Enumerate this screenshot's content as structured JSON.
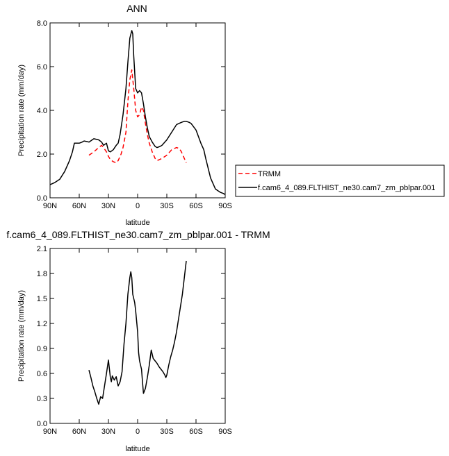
{
  "chart_data": [
    {
      "type": "line",
      "title": "ANN",
      "xlabel": "latitude",
      "ylabel": "Precipitation rate (mm/day)",
      "xlim": [
        90,
        -90
      ],
      "ylim": [
        0,
        8
      ],
      "xticks": [
        90,
        60,
        30,
        0,
        -30,
        -60,
        -90
      ],
      "xtick_labels": [
        "90N",
        "60N",
        "30N",
        "0",
        "30S",
        "60S",
        "90S"
      ],
      "yticks": [
        0,
        2,
        4,
        6,
        8
      ],
      "ytick_labels": [
        "0.0",
        "2.0",
        "4.0",
        "6.0",
        "8.0"
      ],
      "grid": false,
      "legend": "right",
      "series": [
        {
          "name": "TRMM",
          "color": "#ff0000",
          "dash": "dashed",
          "x": [
            50,
            45,
            40,
            37,
            35,
            32,
            30,
            28,
            25,
            22,
            20,
            17,
            15,
            12,
            10,
            8,
            6,
            4,
            2,
            0,
            -2,
            -4,
            -6,
            -8,
            -10,
            -12,
            -15,
            -18,
            -20,
            -25,
            -30,
            -35,
            -40,
            -43,
            -45,
            -48,
            -50
          ],
          "y": [
            1.95,
            2.1,
            2.3,
            2.4,
            2.3,
            2.1,
            1.9,
            1.75,
            1.65,
            1.6,
            1.7,
            2.0,
            2.3,
            3.0,
            4.4,
            5.4,
            5.85,
            5.0,
            4.0,
            3.7,
            3.8,
            4.15,
            4.0,
            3.4,
            2.9,
            2.5,
            2.1,
            1.8,
            1.7,
            1.8,
            1.95,
            2.2,
            2.3,
            2.25,
            2.1,
            1.8,
            1.6
          ]
        },
        {
          "name": "f.cam6_4_089.FLTHIST_ne30.cam7_zm_pblpar.001",
          "color": "#000000",
          "dash": "solid",
          "x": [
            90,
            85,
            80,
            75,
            70,
            67,
            65,
            62,
            60,
            57,
            55,
            50,
            45,
            40,
            37,
            35,
            32,
            30,
            28,
            25,
            22,
            20,
            18,
            15,
            12,
            10,
            8,
            6,
            5,
            4,
            2,
            0,
            -2,
            -4,
            -6,
            -8,
            -10,
            -12,
            -15,
            -18,
            -20,
            -23,
            -25,
            -30,
            -35,
            -40,
            -45,
            -48,
            -50,
            -53,
            -55,
            -60,
            -65,
            -68,
            -70,
            -75,
            -80,
            -85,
            -88,
            -90
          ],
          "y": [
            0.6,
            0.7,
            0.85,
            1.2,
            1.7,
            2.1,
            2.5,
            2.5,
            2.5,
            2.55,
            2.6,
            2.55,
            2.7,
            2.65,
            2.55,
            2.4,
            2.5,
            2.15,
            2.1,
            2.2,
            2.4,
            2.5,
            2.9,
            3.8,
            5.0,
            6.2,
            7.3,
            7.65,
            7.5,
            6.5,
            5.0,
            4.8,
            4.9,
            4.8,
            4.3,
            3.7,
            3.2,
            2.8,
            2.55,
            2.35,
            2.3,
            2.35,
            2.4,
            2.65,
            3.0,
            3.35,
            3.45,
            3.5,
            3.5,
            3.45,
            3.4,
            3.1,
            2.5,
            2.2,
            1.8,
            0.9,
            0.4,
            0.25,
            0.2,
            0.15
          ]
        }
      ]
    },
    {
      "type": "line",
      "title": "f.cam6_4_089.FLTHIST_ne30.cam7_zm_pblpar.001 - TRMM",
      "xlabel": "latitude",
      "ylabel": "Precipitation rate (mm/day)",
      "xlim": [
        90,
        -90
      ],
      "ylim": [
        0,
        2.1
      ],
      "xticks": [
        90,
        60,
        30,
        0,
        -30,
        -60,
        -90
      ],
      "xtick_labels": [
        "90N",
        "60N",
        "30N",
        "0",
        "30S",
        "60S",
        "90S"
      ],
      "yticks": [
        0,
        0.3,
        0.6,
        0.9,
        1.2,
        1.5,
        1.8,
        2.1
      ],
      "ytick_labels": [
        "0.0",
        "0.3",
        "0.6",
        "0.9",
        "1.2",
        "1.5",
        "1.8",
        "2.1"
      ],
      "grid": false,
      "series": [
        {
          "color": "#000000",
          "x": [
            50,
            48,
            46,
            44,
            42,
            40,
            38,
            36,
            34,
            32,
            30,
            28,
            27,
            26,
            24,
            22,
            20,
            18,
            16,
            14,
            12,
            10,
            8,
            7,
            6,
            5,
            4,
            3,
            2,
            0,
            -1,
            -2,
            -4,
            -5,
            -6,
            -8,
            -10,
            -12,
            -14,
            -16,
            -18,
            -20,
            -22,
            -24,
            -26,
            -28,
            -29,
            -30,
            -32,
            -34,
            -36,
            -38,
            -40,
            -42,
            -44,
            -46,
            -48,
            -50
          ],
          "y": [
            0.64,
            0.55,
            0.45,
            0.38,
            0.3,
            0.23,
            0.32,
            0.3,
            0.45,
            0.6,
            0.76,
            0.55,
            0.5,
            0.57,
            0.52,
            0.56,
            0.45,
            0.5,
            0.62,
            0.95,
            1.2,
            1.55,
            1.75,
            1.82,
            1.75,
            1.55,
            1.5,
            1.45,
            1.35,
            1.1,
            0.85,
            0.75,
            0.65,
            0.5,
            0.36,
            0.42,
            0.55,
            0.7,
            0.88,
            0.78,
            0.75,
            0.72,
            0.68,
            0.65,
            0.62,
            0.58,
            0.55,
            0.58,
            0.7,
            0.8,
            0.88,
            0.98,
            1.1,
            1.25,
            1.4,
            1.55,
            1.75,
            1.95
          ]
        }
      ]
    }
  ]
}
